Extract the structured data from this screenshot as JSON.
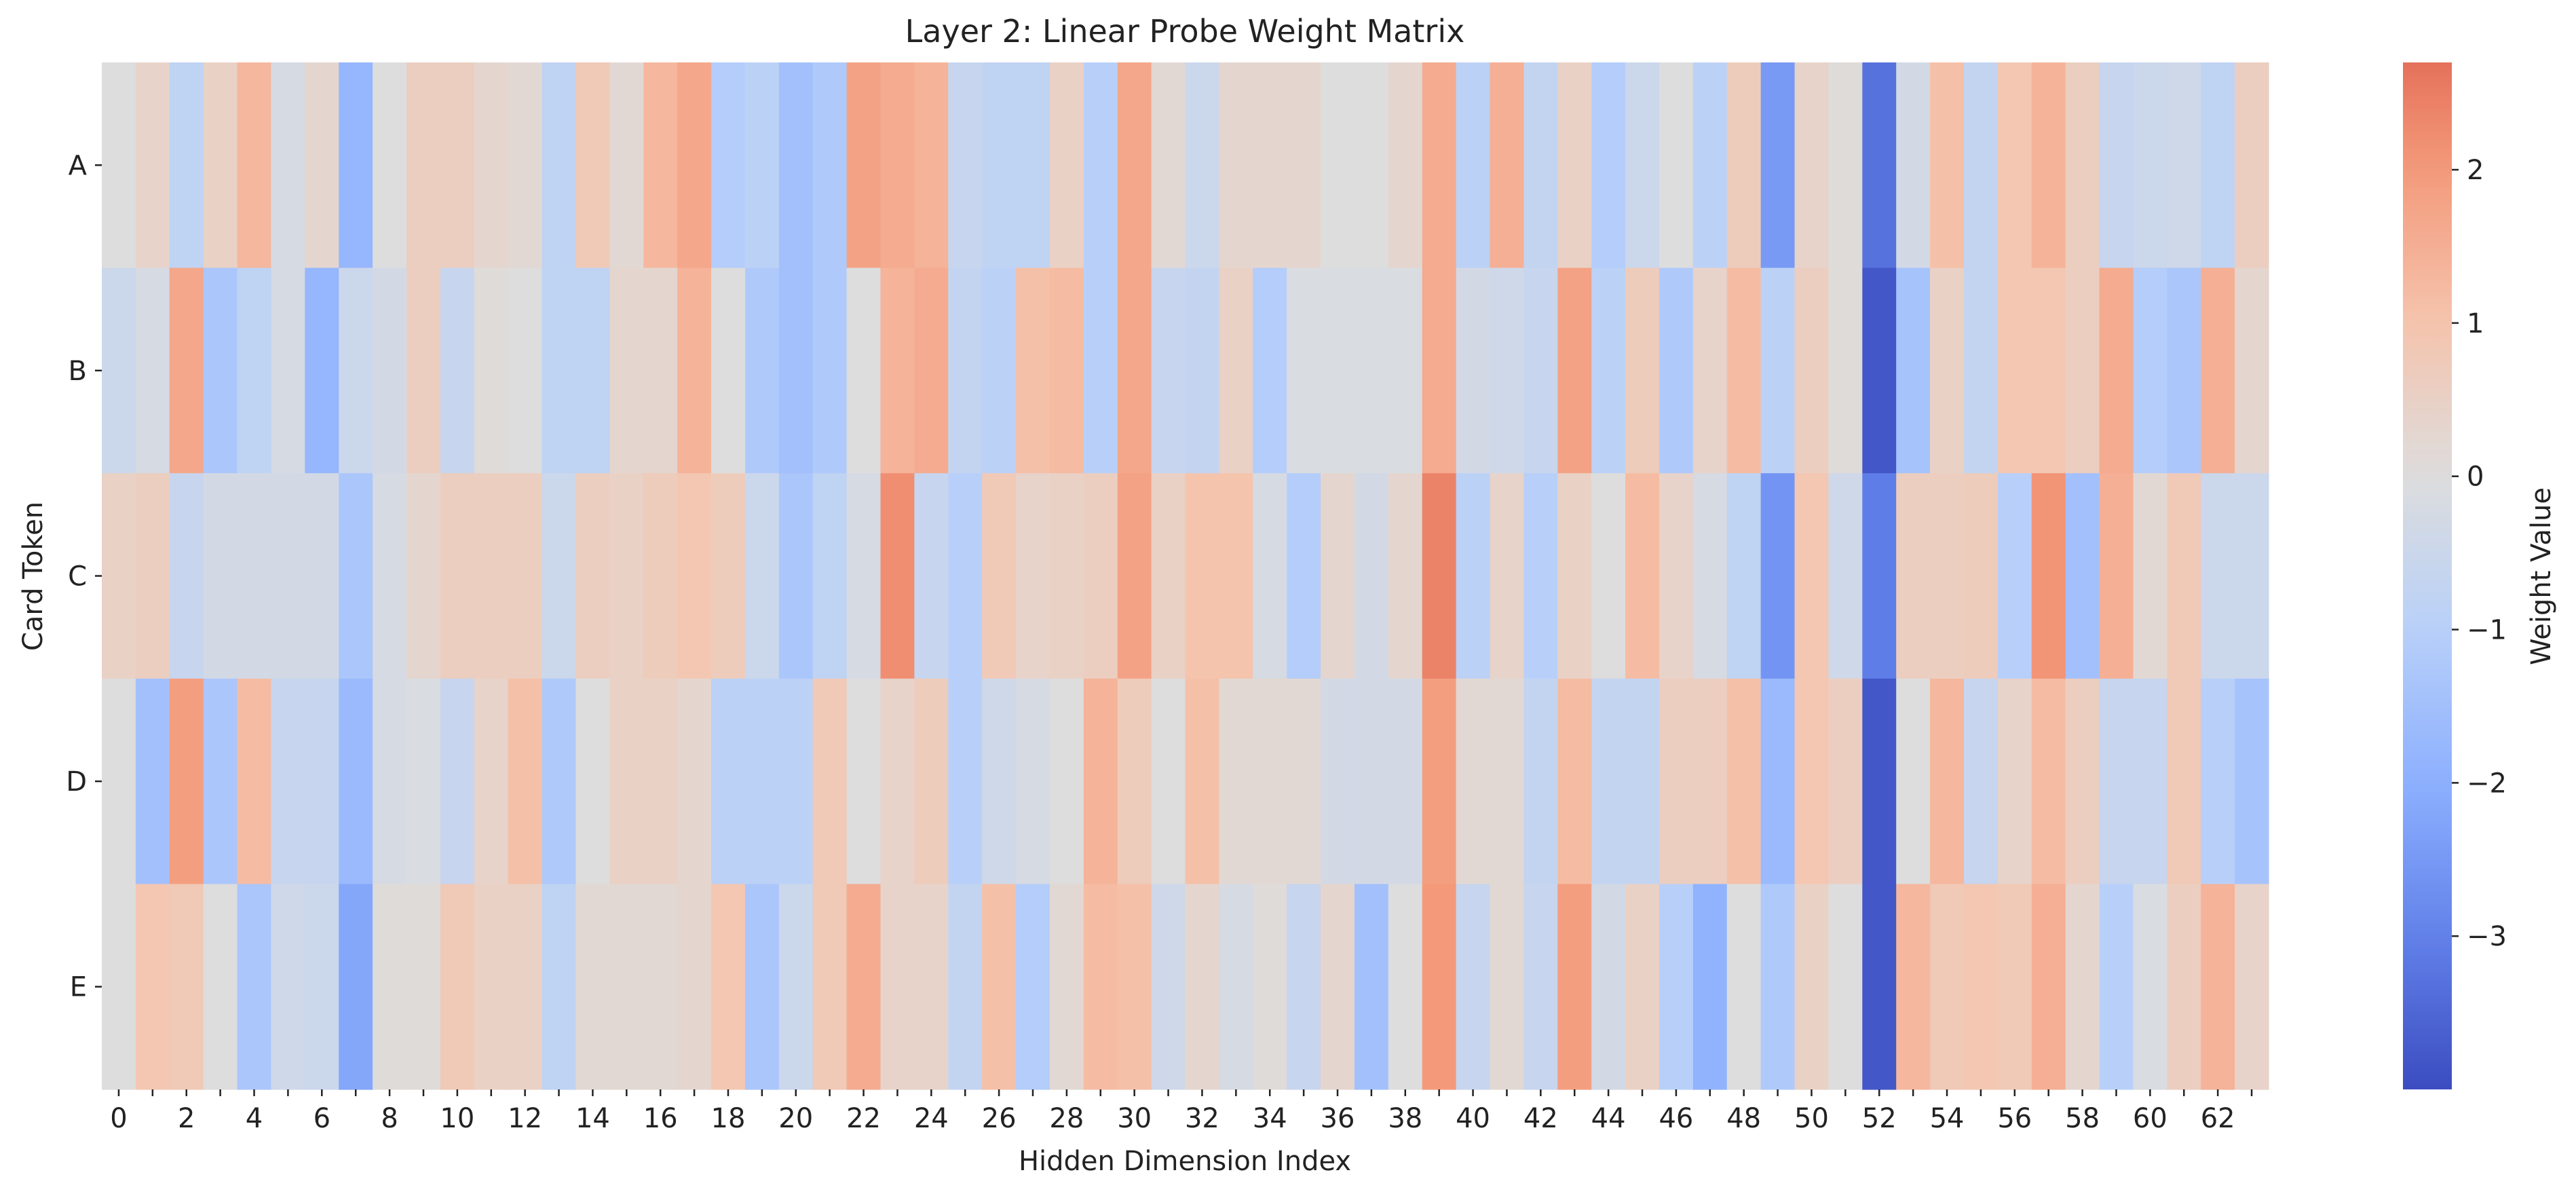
{
  "chart_data": {
    "type": "heatmap",
    "title": "Layer 2: Linear Probe Weight Matrix",
    "xlabel": "Hidden Dimension Index",
    "ylabel": "Card Token",
    "colorbar_label": "Weight Value",
    "rows": [
      "A",
      "B",
      "C",
      "D",
      "E"
    ],
    "x_tick_labels": [
      "0",
      "2",
      "4",
      "6",
      "8",
      "10",
      "12",
      "14",
      "16",
      "18",
      "20",
      "22",
      "24",
      "26",
      "28",
      "30",
      "32",
      "34",
      "36",
      "38",
      "40",
      "42",
      "44",
      "46",
      "48",
      "50",
      "52",
      "54",
      "56",
      "58",
      "60",
      "62"
    ],
    "colorbar_ticks": [
      2,
      1,
      0,
      -1,
      -2,
      -3
    ],
    "colorbar_tick_labels": [
      "2",
      "1",
      "0",
      "−1",
      "−2",
      "−3"
    ],
    "value_range": [
      -4.0,
      2.7
    ],
    "colormap": "coolwarm",
    "values": [
      [
        0.0,
        0.4,
        -0.8,
        0.5,
        1.3,
        -0.2,
        0.3,
        -1.8,
        0.0,
        0.6,
        0.6,
        0.3,
        0.2,
        -0.8,
        0.8,
        0.2,
        1.3,
        1.7,
        -1.1,
        -0.9,
        -1.5,
        -1.2,
        1.8,
        1.6,
        1.4,
        -0.6,
        -0.8,
        -0.8,
        0.5,
        -1.0,
        1.7,
        0.2,
        -0.5,
        0.3,
        0.3,
        0.3,
        0.0,
        0.0,
        0.3,
        1.6,
        -0.9,
        1.5,
        -0.7,
        0.5,
        -1.1,
        -0.5,
        0.0,
        -0.9,
        0.7,
        -2.5,
        0.4,
        0.1,
        -3.3,
        -0.3,
        1.1,
        -0.7,
        0.9,
        1.4,
        0.6,
        -0.6,
        -0.5,
        -0.4,
        -0.8,
        0.6
      ],
      [
        -0.5,
        -0.2,
        1.7,
        -1.3,
        -0.8,
        -0.2,
        -1.8,
        -0.5,
        -0.3,
        0.6,
        -0.6,
        0.1,
        0.0,
        -0.8,
        -0.8,
        0.3,
        0.3,
        1.4,
        0.0,
        -1.2,
        -1.5,
        -1.2,
        0.0,
        1.4,
        1.6,
        -0.7,
        -0.9,
        1.1,
        1.2,
        -1.0,
        1.7,
        -0.6,
        -0.7,
        0.5,
        -1.1,
        -0.1,
        -0.1,
        -0.1,
        -0.1,
        1.6,
        -0.3,
        -0.4,
        -0.6,
        1.8,
        -0.9,
        0.7,
        -1.2,
        0.4,
        1.2,
        -0.9,
        0.6,
        0.1,
        -3.8,
        -1.4,
        0.5,
        -0.7,
        0.9,
        0.9,
        0.6,
        1.6,
        -1.1,
        -1.3,
        1.5,
        0.3
      ],
      [
        0.5,
        0.6,
        -0.6,
        -0.3,
        -0.3,
        -0.3,
        -0.3,
        -1.3,
        -0.2,
        0.3,
        0.6,
        0.6,
        0.6,
        -0.5,
        0.6,
        0.5,
        0.7,
        0.9,
        0.7,
        -0.5,
        -1.3,
        -0.8,
        -0.2,
        2.2,
        -0.6,
        -1.0,
        0.8,
        0.4,
        0.5,
        0.6,
        1.8,
        0.5,
        1.0,
        1.0,
        -0.2,
        -1.1,
        0.3,
        -0.3,
        0.3,
        2.4,
        -0.9,
        0.4,
        -1.0,
        0.5,
        0.0,
        1.2,
        0.4,
        -0.2,
        -0.8,
        -2.6,
        0.9,
        -0.4,
        -3.1,
        0.6,
        0.6,
        0.7,
        -1.0,
        2.1,
        -1.5,
        1.5,
        0.2,
        0.8,
        -0.5,
        -0.5
      ],
      [
        0.0,
        -1.5,
        1.9,
        -1.3,
        1.2,
        -0.6,
        -0.6,
        -1.7,
        -0.2,
        -0.1,
        -0.6,
        0.4,
        1.1,
        -1.2,
        0.0,
        0.5,
        0.5,
        0.3,
        -0.9,
        -0.9,
        -0.9,
        0.8,
        0.0,
        0.4,
        0.7,
        -1.0,
        -0.4,
        -0.2,
        0.0,
        1.4,
        0.7,
        0.0,
        1.1,
        0.2,
        0.2,
        0.2,
        -0.3,
        -0.3,
        -0.3,
        1.9,
        0.2,
        0.2,
        -0.7,
        1.2,
        -0.7,
        -0.7,
        0.6,
        0.6,
        1.1,
        -1.7,
        0.9,
        0.6,
        -3.8,
        0.0,
        1.3,
        -0.6,
        0.4,
        1.2,
        0.6,
        -0.6,
        -0.6,
        0.8,
        -1.0,
        -1.4
      ],
      [
        0.0,
        0.9,
        0.8,
        0.0,
        -1.3,
        -0.4,
        -0.5,
        -2.2,
        0.1,
        0.1,
        0.8,
        0.5,
        0.5,
        -0.8,
        0.2,
        0.2,
        0.2,
        0.3,
        0.9,
        -1.3,
        -0.5,
        0.8,
        1.6,
        0.4,
        0.4,
        -0.7,
        1.1,
        -1.1,
        0.2,
        1.2,
        1.1,
        -0.4,
        0.3,
        -0.2,
        0.1,
        -0.6,
        0.3,
        -1.5,
        0.0,
        2.0,
        -0.6,
        0.2,
        -0.6,
        1.9,
        -0.3,
        0.5,
        -1.0,
        -1.9,
        0.0,
        -1.2,
        0.5,
        0.0,
        -3.8,
        1.3,
        0.8,
        0.9,
        0.8,
        1.5,
        0.3,
        -1.0,
        -0.1,
        0.6,
        1.4,
        0.4
      ]
    ]
  }
}
